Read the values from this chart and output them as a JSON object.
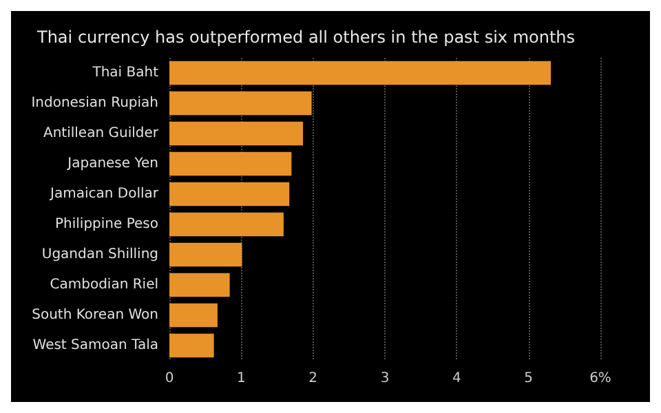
{
  "chart_data": {
    "type": "bar",
    "orientation": "horizontal",
    "title": "Thai currency has outperformed all others in the past six months",
    "categories": [
      "Thai Baht",
      "Indonesian Rupiah",
      "Antillean Guilder",
      "Japanese Yen",
      "Jamaican Dollar",
      "Philippine Peso",
      "Ugandan Shilling",
      "Cambodian Riel",
      "South Korean Won",
      "West Samoan Tala"
    ],
    "values": [
      5.31,
      1.98,
      1.86,
      1.7,
      1.67,
      1.59,
      1.01,
      0.84,
      0.67,
      0.62
    ],
    "color": "#e8922a",
    "xlim": [
      0,
      6
    ],
    "xticks": [
      0,
      1,
      2,
      3,
      4,
      5,
      {
        "value": 6,
        "label": "6%"
      }
    ],
    "grid": "x"
  }
}
